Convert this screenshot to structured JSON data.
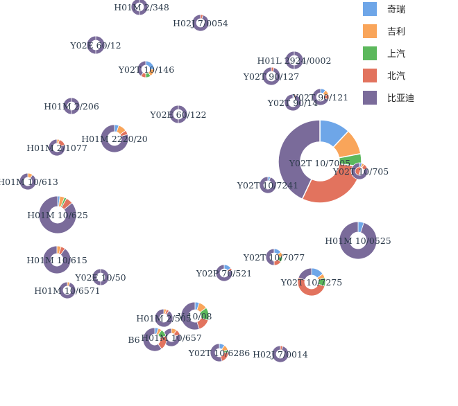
{
  "chart_data": {
    "type": "pie",
    "subtype": "scattered-donut-bubbles",
    "title": "",
    "legend": {
      "placement": "top-right",
      "entries": [
        {
          "name": "奇瑞",
          "color": "#6ea6e8"
        },
        {
          "name": "吉利",
          "color": "#f9a55a"
        },
        {
          "name": "上汽",
          "color": "#5cb85c"
        },
        {
          "name": "北汽",
          "color": "#e2735e"
        },
        {
          "name": "比亚迪",
          "color": "#7a6b9a"
        }
      ]
    },
    "categories": [
      "奇瑞",
      "吉利",
      "上汽",
      "北汽",
      "比亚迪"
    ],
    "nodes": [
      {
        "label": "H01M 2/348",
        "values": [
          0,
          0,
          0,
          0,
          100
        ]
      },
      {
        "label": "H02J 7/0054",
        "values": [
          0,
          0,
          0,
          5,
          95
        ]
      },
      {
        "label": "Y02E 60/12",
        "values": [
          0,
          0,
          0,
          0,
          100
        ]
      },
      {
        "label": "Y02T 10/146",
        "values": [
          25,
          15,
          10,
          10,
          40
        ]
      },
      {
        "label": "H01L 2924/0002",
        "values": [
          0,
          0,
          0,
          0,
          100
        ]
      },
      {
        "label": "Y02T 90/127",
        "values": [
          0,
          0,
          0,
          5,
          95
        ]
      },
      {
        "label": "Y02T 90/121",
        "values": [
          10,
          10,
          0,
          10,
          70
        ]
      },
      {
        "label": "Y02T 90/14",
        "values": [
          3,
          0,
          0,
          3,
          94
        ]
      },
      {
        "label": "H01M 2/206",
        "values": [
          0,
          0,
          0,
          0,
          100
        ]
      },
      {
        "label": "Y02E 60/122",
        "values": [
          0,
          0,
          0,
          0,
          100
        ]
      },
      {
        "label": "H01M 2220/20",
        "values": [
          5,
          10,
          0,
          5,
          80
        ]
      },
      {
        "label": "H01M 2/1077",
        "values": [
          0,
          5,
          0,
          15,
          80
        ]
      },
      {
        "label": "Y02T 10/7005",
        "values": [
          12,
          10,
          5,
          30,
          43
        ]
      },
      {
        "label": "Y02T 10/705",
        "values": [
          5,
          5,
          0,
          10,
          80
        ]
      },
      {
        "label": "H01M 10/613",
        "values": [
          0,
          10,
          0,
          0,
          90
        ]
      },
      {
        "label": "Y02T 10/7241",
        "values": [
          5,
          0,
          0,
          0,
          95
        ]
      },
      {
        "label": "H01M 10/625",
        "values": [
          2,
          4,
          2,
          6,
          86
        ]
      },
      {
        "label": "H01M 10/0525",
        "values": [
          5,
          0,
          0,
          0,
          95
        ]
      },
      {
        "label": "H01M 10/615",
        "values": [
          0,
          5,
          0,
          5,
          90
        ]
      },
      {
        "label": "Y02T 10/7077",
        "values": [
          15,
          10,
          10,
          15,
          50
        ]
      },
      {
        "label": "Y02P 70/521",
        "values": [
          15,
          0,
          0,
          5,
          80
        ]
      },
      {
        "label": "Y02E 10/50",
        "values": [
          0,
          0,
          0,
          0,
          100
        ]
      },
      {
        "label": "Y02T 10/7275",
        "values": [
          15,
          5,
          10,
          50,
          20
        ]
      },
      {
        "label": "H01M 10/6571",
        "values": [
          0,
          5,
          0,
          0,
          95
        ]
      },
      {
        "label": "H01M 2/505",
        "values": [
          0,
          5,
          0,
          5,
          90
        ]
      },
      {
        "label": "V 10/08",
        "values": [
          5,
          10,
          15,
          15,
          55
        ]
      },
      {
        "label": "H01M 10/657",
        "values": [
          0,
          10,
          0,
          10,
          80
        ]
      },
      {
        "label": "B6",
        "values": [
          5,
          5,
          10,
          20,
          60
        ]
      },
      {
        "label": "Y02T 10/6286",
        "values": [
          10,
          10,
          5,
          20,
          55
        ]
      },
      {
        "label": "H02J 7/0014",
        "values": [
          0,
          0,
          0,
          5,
          95
        ]
      }
    ]
  }
}
